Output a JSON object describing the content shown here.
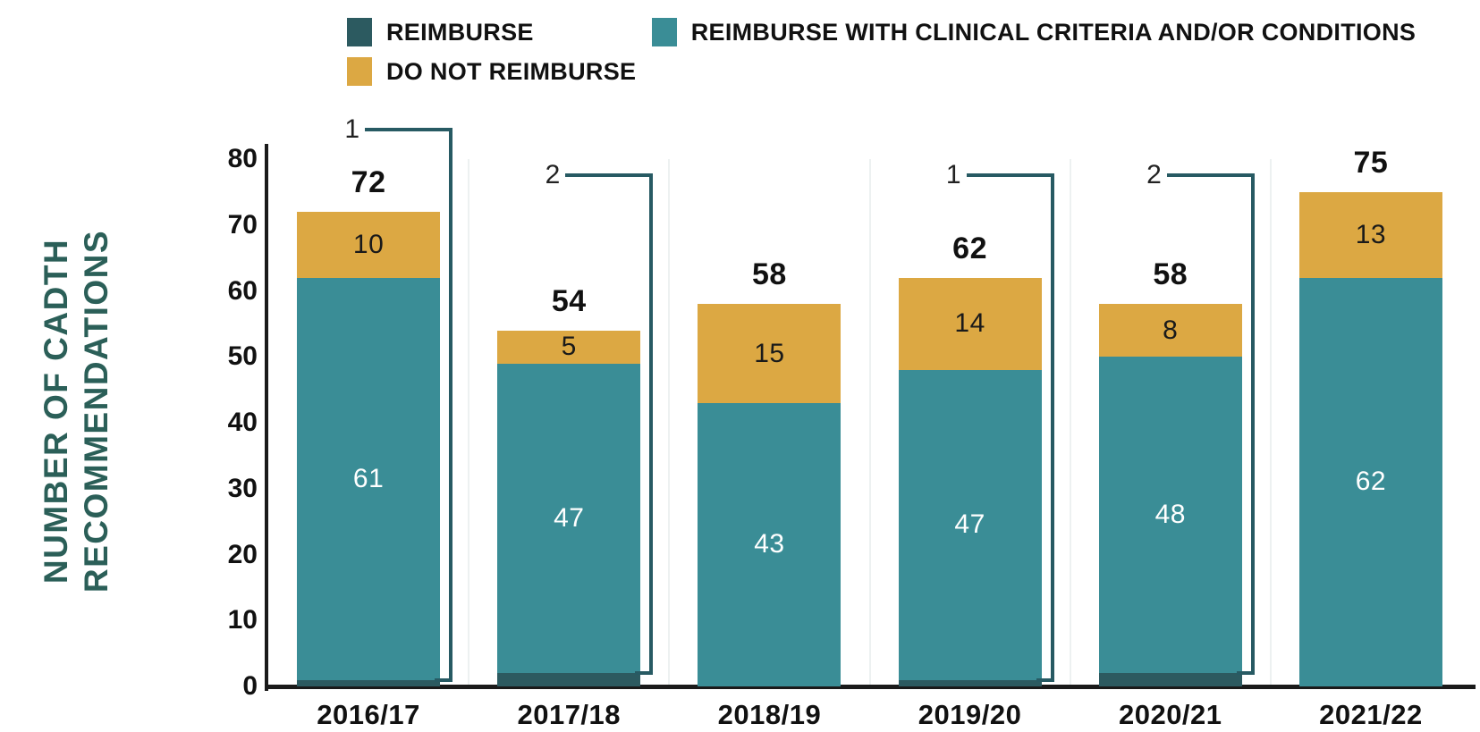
{
  "legend": {
    "items": [
      {
        "label": "REIMBURSE",
        "color": "#2C5A60"
      },
      {
        "label": "REIMBURSE WITH CLINICAL CRITERIA AND/OR CONDITIONS",
        "color": "#3A8D96"
      },
      {
        "label": "DO NOT REIMBURSE",
        "color": "#DCA843"
      }
    ]
  },
  "colors": {
    "reimburse": "#2C5A60",
    "reimburse_with_criteria": "#3A8D96",
    "do_not_reimburse": "#DCA843",
    "axis": "#1a1a1a",
    "ylabel_text": "#2B5F58",
    "callout_line": "#275A63",
    "segment_label_light": "#ffffff",
    "segment_label_dark": "#1a1a1a",
    "background": "#ffffff"
  },
  "chart_data": {
    "type": "bar",
    "stacked": true,
    "title": "",
    "xlabel": "",
    "ylabel": "NUMBER OF CADTH RECOMMENDATIONS",
    "ylabel_lines": [
      "NUMBER OF CADTH",
      "RECOMMENDATIONS"
    ],
    "categories": [
      "2016/17",
      "2017/18",
      "2018/19",
      "2019/20",
      "2020/21",
      "2021/22"
    ],
    "series": [
      {
        "name": "REIMBURSE",
        "color": "#2C5A60",
        "values": [
          1,
          2,
          0,
          1,
          2,
          0
        ],
        "label_color": "#222222",
        "labels_shown_as": "callout"
      },
      {
        "name": "REIMBURSE WITH CLINICAL CRITERIA AND/OR CONDITIONS",
        "color": "#3A8D96",
        "values": [
          61,
          47,
          43,
          47,
          48,
          62
        ],
        "label_color": "#ffffff",
        "labels_shown_as": "inside"
      },
      {
        "name": "DO NOT REIMBURSE",
        "color": "#DCA843",
        "values": [
          10,
          5,
          15,
          14,
          8,
          13
        ],
        "label_color": "#1a1a1a",
        "labels_shown_as": "inside"
      }
    ],
    "totals": [
      72,
      54,
      58,
      62,
      58,
      75
    ],
    "callouts": [
      {
        "category": "2016/17",
        "series": "REIMBURSE",
        "value": 1
      },
      {
        "category": "2017/18",
        "series": "REIMBURSE",
        "value": 2
      },
      {
        "category": "2019/20",
        "series": "REIMBURSE",
        "value": 1
      },
      {
        "category": "2020/21",
        "series": "REIMBURSE",
        "value": 2
      }
    ],
    "ylim": [
      0,
      80
    ],
    "yticks": [
      0,
      10,
      20,
      30,
      40,
      50,
      60,
      70,
      80
    ],
    "grid": false,
    "legend_position": "top"
  }
}
